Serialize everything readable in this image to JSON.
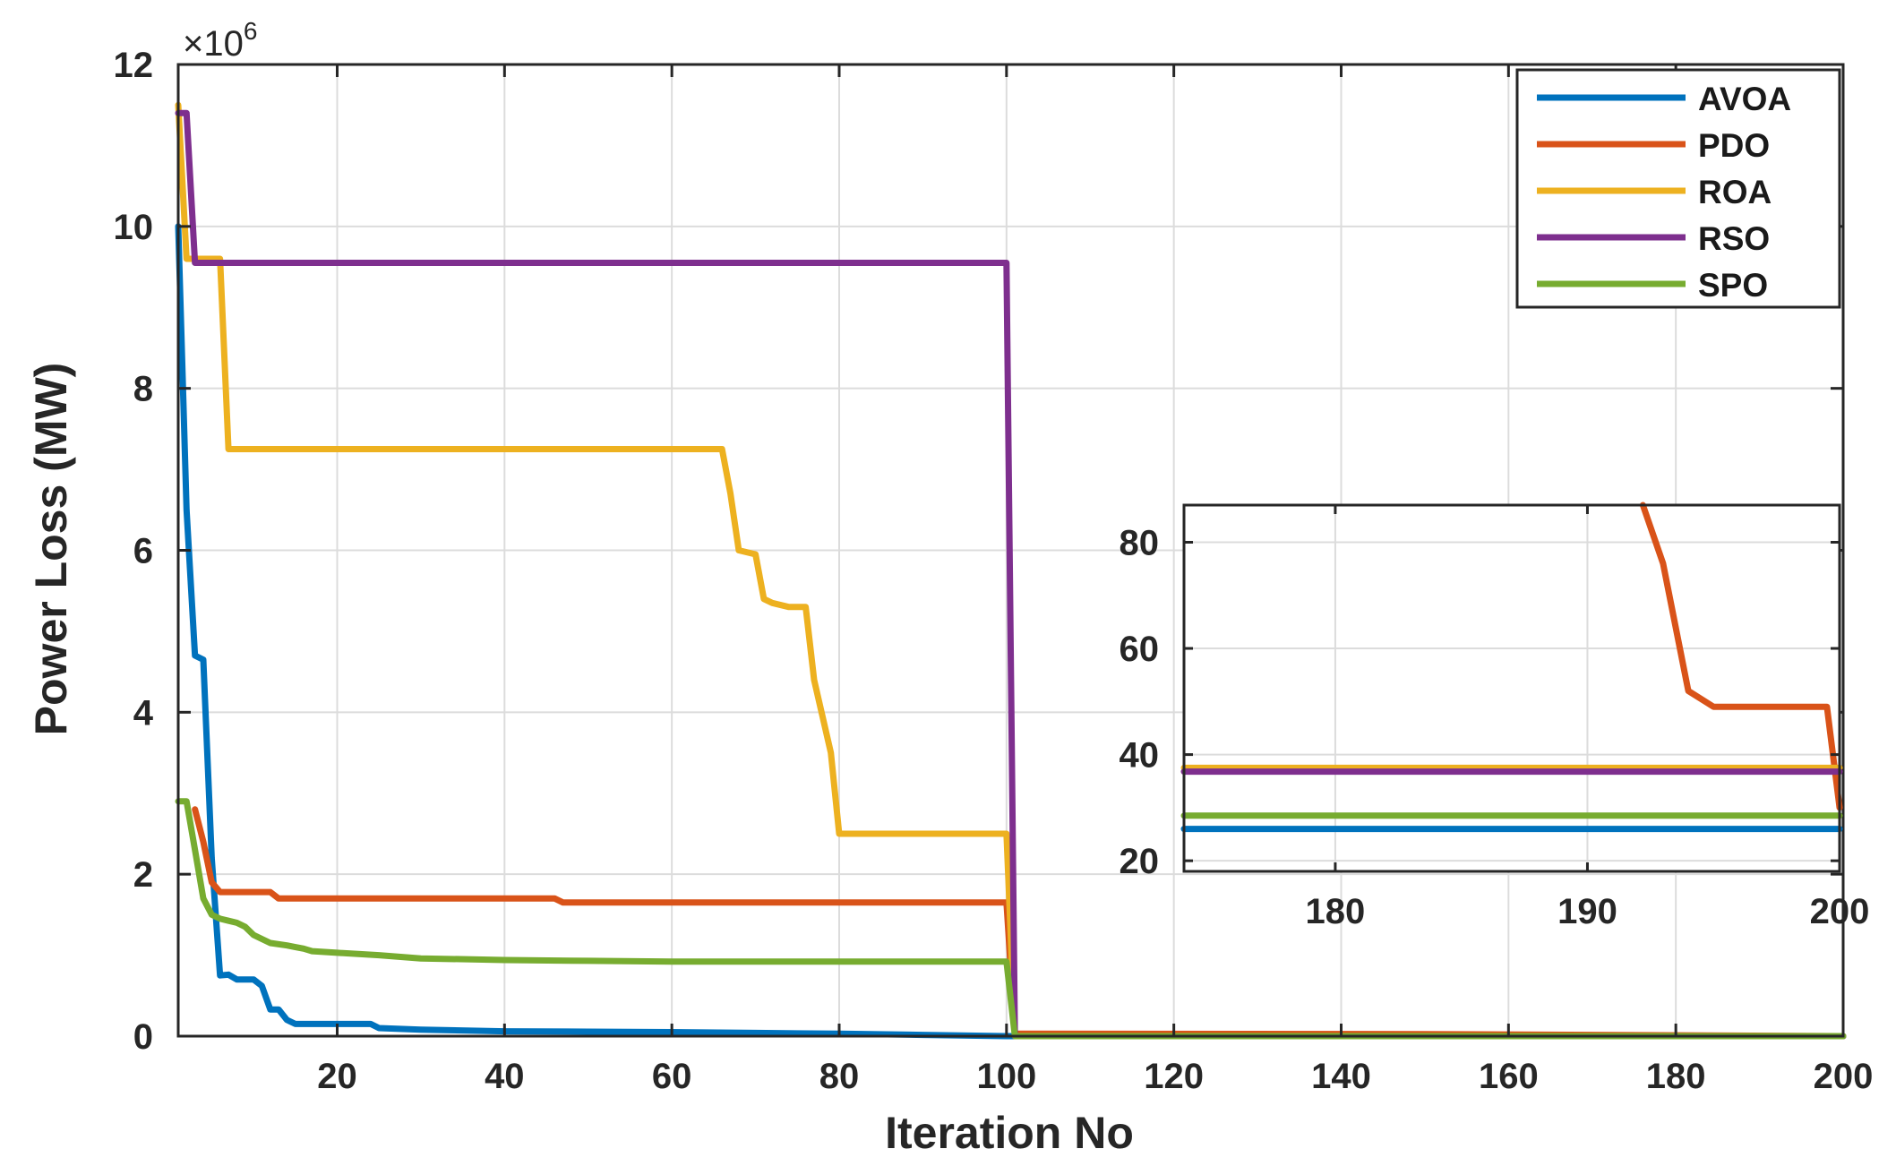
{
  "chart_data": [
    {
      "type": "line",
      "xlabel": "Iteration No",
      "ylabel": "Power Loss (MW)",
      "y_multiplier_label": "×10",
      "y_multiplier_exp": "6",
      "xlim": [
        1,
        200
      ],
      "ylim": [
        0,
        12000000
      ],
      "xticks": [
        20,
        40,
        60,
        80,
        100,
        120,
        140,
        160,
        180,
        200
      ],
      "yticks": [
        0,
        2,
        4,
        6,
        8,
        10,
        12
      ],
      "ytick_scale": 1000000,
      "grid": true,
      "legend_position": "top-right",
      "series": [
        {
          "name": "AVOA",
          "color": "#0072BD",
          "x": [
            1,
            2,
            3,
            4,
            5,
            6,
            7,
            8,
            9,
            10,
            11,
            12,
            13,
            14,
            15,
            16,
            20,
            24,
            25,
            30,
            40,
            50,
            60,
            70,
            80,
            90,
            100,
            101,
            200
          ],
          "y": [
            10000000,
            6500000,
            4700000,
            4650000,
            2200000,
            750000,
            760000,
            700000,
            700000,
            700000,
            620000,
            330000,
            330000,
            200000,
            150000,
            150000,
            150000,
            150000,
            100000,
            80000,
            60000,
            55000,
            50000,
            40000,
            30000,
            15000,
            0,
            0,
            0
          ]
        },
        {
          "name": "PDO",
          "color": "#D95319",
          "x": [
            3,
            4,
            5,
            6,
            12,
            13,
            46,
            47,
            100,
            101,
            150,
            200
          ],
          "y": [
            2800000,
            2400000,
            1900000,
            1780000,
            1780000,
            1700000,
            1700000,
            1650000,
            1650000,
            30000,
            25000,
            0
          ]
        },
        {
          "name": "ROA",
          "color": "#EDB120",
          "x": [
            1,
            2,
            3,
            4,
            5,
            6,
            7,
            8,
            66,
            67,
            68,
            70,
            71,
            72,
            74,
            76,
            77,
            79,
            80,
            81,
            100,
            101,
            200
          ],
          "y": [
            11500000,
            9600000,
            9600000,
            9600000,
            9600000,
            9600000,
            7250000,
            7250000,
            7250000,
            6700000,
            6000000,
            5950000,
            5400000,
            5350000,
            5300000,
            5300000,
            4400000,
            3500000,
            2500000,
            2500000,
            2500000,
            0,
            0
          ]
        },
        {
          "name": "RSO",
          "color": "#7E2F8E",
          "x": [
            1,
            2,
            3,
            100,
            101,
            200
          ],
          "y": [
            11400000,
            11400000,
            9550000,
            9550000,
            0,
            0
          ]
        },
        {
          "name": "SPO",
          "color": "#77AC30",
          "x": [
            1,
            2,
            3,
            4,
            5,
            6,
            8,
            9,
            10,
            11,
            12,
            14,
            15,
            16,
            17,
            20,
            25,
            30,
            40,
            50,
            60,
            80,
            100,
            101,
            200
          ],
          "y": [
            2900000,
            2900000,
            2300000,
            1700000,
            1500000,
            1450000,
            1400000,
            1350000,
            1250000,
            1200000,
            1150000,
            1120000,
            1100000,
            1080000,
            1050000,
            1030000,
            1000000,
            960000,
            940000,
            930000,
            920000,
            920000,
            920000,
            0,
            0
          ]
        }
      ]
    },
    {
      "type": "line",
      "inset": true,
      "xlim": [
        174,
        200
      ],
      "ylim": [
        18,
        87
      ],
      "xticks": [
        180,
        190,
        200
      ],
      "yticks": [
        20,
        40,
        60,
        80
      ],
      "grid": true,
      "series": [
        {
          "name": "AVOA",
          "color": "#0072BD",
          "x": [
            174,
            200
          ],
          "y": [
            26,
            26
          ]
        },
        {
          "name": "PDO",
          "color": "#D95319",
          "x": [
            192.2,
            193,
            194,
            195,
            199.5,
            200
          ],
          "y": [
            87,
            76,
            52,
            49,
            49,
            30
          ]
        },
        {
          "name": "ROA",
          "color": "#EDB120",
          "x": [
            174,
            200
          ],
          "y": [
            37.5,
            37.5
          ]
        },
        {
          "name": "RSO",
          "color": "#7E2F8E",
          "x": [
            174,
            200
          ],
          "y": [
            36.8,
            36.8
          ]
        },
        {
          "name": "SPO",
          "color": "#77AC30",
          "x": [
            174,
            200
          ],
          "y": [
            28.5,
            28.5
          ]
        }
      ]
    }
  ]
}
